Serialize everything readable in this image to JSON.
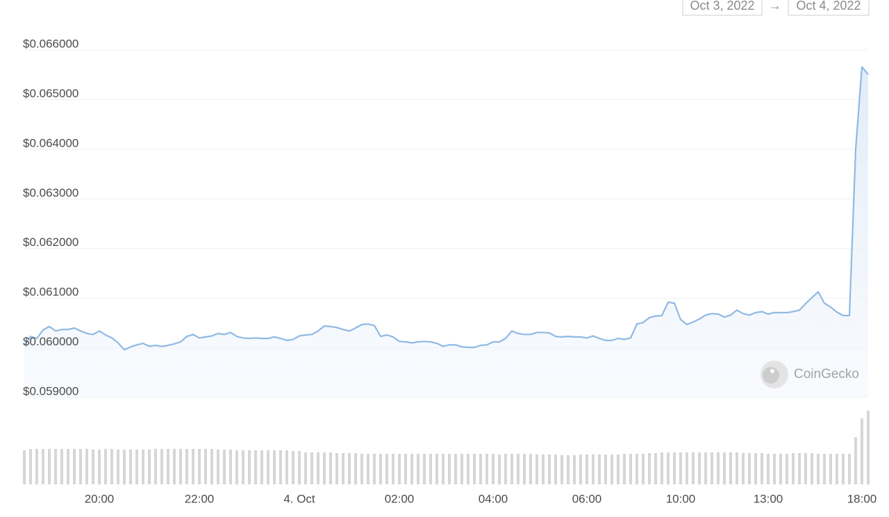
{
  "chart_data": {
    "type": "line",
    "date_range": {
      "start": "Oct 3, 2022",
      "separator": "→",
      "end": "Oct 4, 2022"
    },
    "watermark": "CoinGecko",
    "grid": true,
    "categories": [
      null,
      null,
      null,
      null,
      null,
      null,
      null,
      null,
      null,
      null,
      null,
      null,
      "20:00",
      null,
      null,
      null,
      null,
      null,
      null,
      null,
      null,
      null,
      null,
      null,
      null,
      null,
      null,
      null,
      "22:00",
      null,
      null,
      null,
      null,
      null,
      null,
      null,
      null,
      null,
      null,
      null,
      null,
      null,
      null,
      null,
      "4. Oct",
      null,
      null,
      null,
      null,
      null,
      null,
      null,
      null,
      null,
      null,
      null,
      null,
      null,
      null,
      null,
      "02:00",
      null,
      null,
      null,
      null,
      null,
      null,
      null,
      null,
      null,
      null,
      null,
      null,
      null,
      null,
      "04:00",
      null,
      null,
      null,
      null,
      null,
      null,
      null,
      null,
      null,
      null,
      null,
      null,
      null,
      null,
      "06:00",
      null,
      null,
      null,
      null,
      null,
      null,
      null,
      null,
      null,
      null,
      null,
      null,
      null,
      null,
      "10:00",
      null,
      null,
      null,
      null,
      null,
      null,
      null,
      null,
      null,
      null,
      null,
      null,
      null,
      "13:00",
      null,
      null,
      null,
      null,
      null,
      null,
      null,
      null,
      null,
      null,
      null,
      null,
      null,
      null,
      "18:00",
      null
    ],
    "ylim": [
      0.059,
      0.066
    ],
    "yticks": [
      {
        "value": 0.059,
        "label": "$0.059000"
      },
      {
        "value": 0.06,
        "label": "$0.060000"
      },
      {
        "value": 0.061,
        "label": "$0.061000"
      },
      {
        "value": 0.062,
        "label": "$0.062000"
      },
      {
        "value": 0.063,
        "label": "$0.063000"
      },
      {
        "value": 0.064,
        "label": "$0.064000"
      },
      {
        "value": 0.065,
        "label": "$0.065000"
      },
      {
        "value": 0.066,
        "label": "$0.066000"
      }
    ],
    "y2lim": [
      0,
      110
    ],
    "series": [
      {
        "color": "#8fb9e3",
        "values": [
          0.06005,
          0.06023,
          0.06019,
          0.06036,
          0.06043,
          0.06034,
          0.06037,
          0.06037,
          0.0604,
          0.06034,
          0.06029,
          0.06027,
          0.06034,
          0.06026,
          0.0602,
          0.0601,
          0.05996,
          0.06002,
          0.06006,
          0.06009,
          0.06003,
          0.06005,
          0.06003,
          0.06005,
          0.06008,
          0.06012,
          0.06023,
          0.06027,
          0.0602,
          0.06022,
          0.06024,
          0.06029,
          0.06027,
          0.06031,
          0.06023,
          0.0602,
          0.06019,
          0.0602,
          0.06019,
          0.06019,
          0.06022,
          0.06019,
          0.06015,
          0.06017,
          0.06024,
          0.06026,
          0.06027,
          0.06034,
          0.06044,
          0.06043,
          0.06041,
          0.06037,
          0.06034,
          0.0604,
          0.06047,
          0.06048,
          0.06045,
          0.06023,
          0.06026,
          0.06022,
          0.06013,
          0.06012,
          0.0601,
          0.06012,
          0.06013,
          0.06012,
          0.06009,
          0.06003,
          0.06006,
          0.06006,
          0.06002,
          0.06001,
          0.06001,
          0.06005,
          0.06006,
          0.06012,
          0.06012,
          0.06019,
          0.06034,
          0.06029,
          0.06027,
          0.06027,
          0.06031,
          0.06031,
          0.0603,
          0.06023,
          0.06022,
          0.06023,
          0.06022,
          0.06022,
          0.0602,
          0.06024,
          0.06019,
          0.06015,
          0.06015,
          0.06019,
          0.06017,
          0.0602,
          0.06048,
          0.06051,
          0.06061,
          0.06064,
          0.06065,
          0.06092,
          0.0609,
          0.06057,
          0.06047,
          0.06052,
          0.06058,
          0.06066,
          0.06069,
          0.06068,
          0.06062,
          0.06066,
          0.06076,
          0.06069,
          0.06066,
          0.06071,
          0.06073,
          0.06068,
          0.06071,
          0.06071,
          0.06071,
          0.06073,
          0.06076,
          0.06089,
          0.06101,
          0.06113,
          0.0609,
          0.06082,
          0.06072,
          0.06065,
          0.06065,
          0.064,
          0.06566,
          0.06551
        ]
      },
      {
        "type": "bar",
        "axis": "y2",
        "color": "#d6d6d6",
        "values": [
          49,
          51,
          51,
          51,
          51,
          51,
          51,
          51,
          51,
          51,
          51,
          50,
          50,
          51,
          51,
          50,
          50,
          50,
          50,
          50,
          50,
          51,
          51,
          51,
          51,
          51,
          51,
          51,
          51,
          51,
          51,
          50,
          50,
          50,
          49,
          49,
          49,
          49,
          49,
          49,
          49,
          49,
          49,
          48,
          48,
          46,
          46,
          46,
          46,
          46,
          45,
          45,
          45,
          45,
          44,
          44,
          44,
          44,
          44,
          44,
          44,
          44,
          44,
          44,
          44,
          44,
          44,
          44,
          44,
          44,
          44,
          44,
          44,
          44,
          44,
          44,
          43,
          44,
          44,
          44,
          44,
          44,
          43,
          43,
          43,
          43,
          42,
          42,
          42,
          43,
          43,
          43,
          43,
          43,
          43,
          43,
          44,
          44,
          44,
          44,
          45,
          45,
          46,
          46,
          46,
          46,
          46,
          46,
          46,
          46,
          46,
          46,
          46,
          46,
          46,
          45,
          45,
          45,
          45,
          44,
          44,
          44,
          44,
          45,
          45,
          45,
          45,
          44,
          44,
          44,
          44,
          44,
          44,
          68,
          95,
          106
        ]
      }
    ]
  }
}
